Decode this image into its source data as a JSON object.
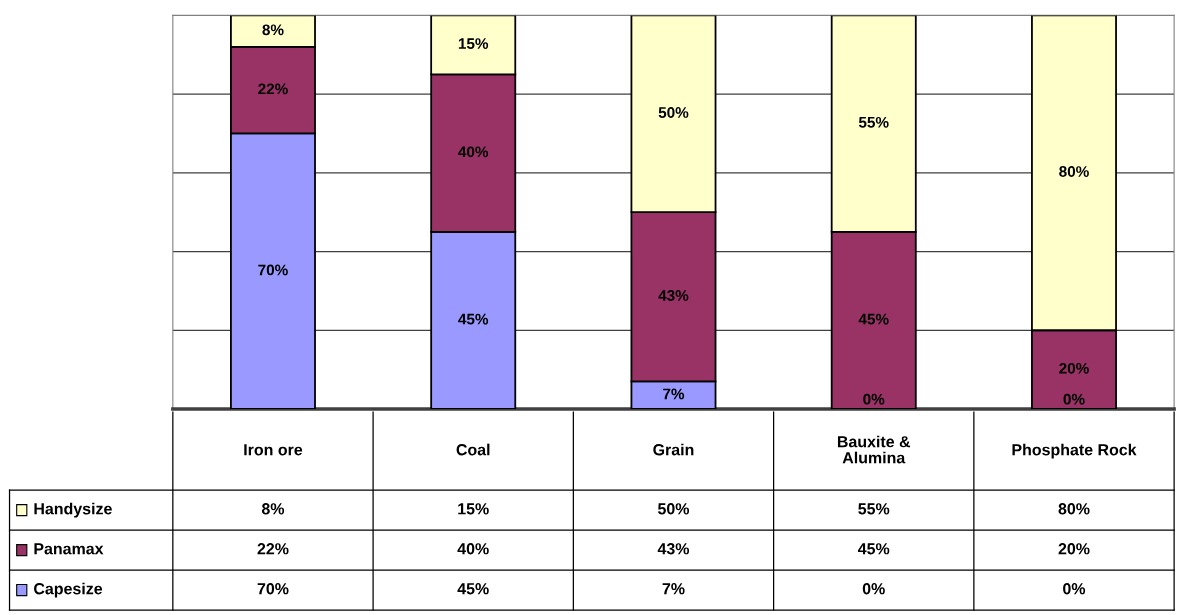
{
  "chart_data": {
    "type": "bar",
    "stacked": true,
    "categories": [
      "Iron ore",
      "Coal",
      "Grain",
      "Bauxite &\nAlumina",
      "Phosphate Rock"
    ],
    "series": [
      {
        "name": "Capesize",
        "color": "#9999ff",
        "values": [
          70,
          45,
          7,
          0,
          0
        ],
        "value_labels": [
          "70%",
          "45%",
          "7%",
          "0%",
          "0%"
        ]
      },
      {
        "name": "Panamax",
        "color": "#993366",
        "values": [
          22,
          40,
          43,
          45,
          20
        ],
        "value_labels": [
          "22%",
          "40%",
          "43%",
          "45%",
          "20%"
        ]
      },
      {
        "name": "Handysize",
        "color": "#ffffcc",
        "values": [
          8,
          15,
          50,
          55,
          80
        ],
        "value_labels": [
          "8%",
          "15%",
          "50%",
          "55%",
          "80%"
        ]
      }
    ],
    "ylim": [
      0,
      100
    ],
    "yticks": [
      {
        "value": 0,
        "label": null
      },
      {
        "value": 20,
        "label": null
      },
      {
        "value": 40,
        "label": null
      },
      {
        "value": 60,
        "label": null
      },
      {
        "value": 80,
        "label": null
      },
      {
        "value": 100,
        "label": null
      }
    ],
    "grid": "y",
    "tick_labels": "x",
    "legend": "bottom left"
  }
}
